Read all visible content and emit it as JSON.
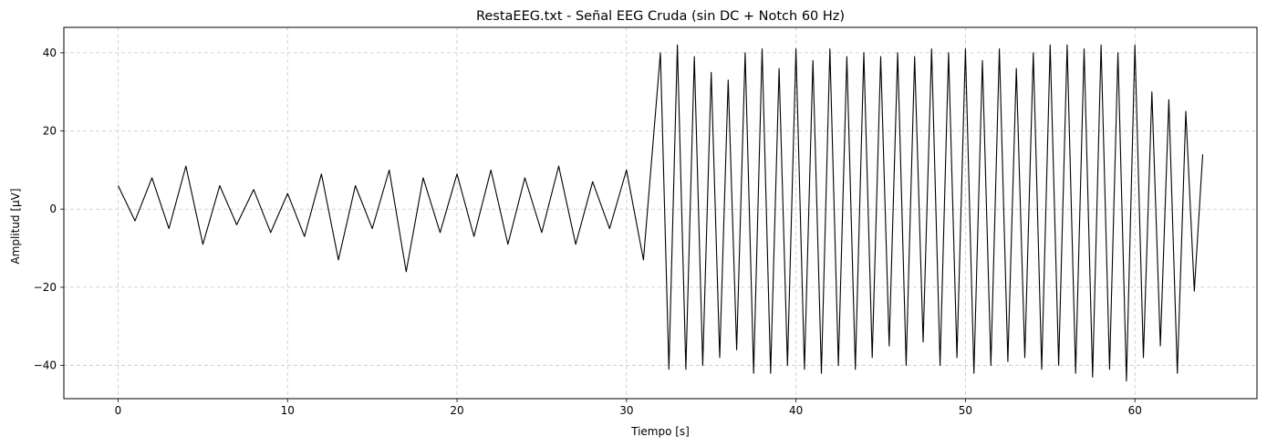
{
  "chart_data": {
    "type": "line",
    "title": "RestaEEG.txt - Señal EEG Cruda (sin DC + Notch 60 Hz)",
    "xlabel": "Tiempo [s]",
    "ylabel": "Amplitud [μV]",
    "xlim": [
      -3.2,
      67.2
    ],
    "ylim": [
      -48.5,
      46.5
    ],
    "xticks": [
      0,
      10,
      20,
      30,
      40,
      50,
      60
    ],
    "yticks": [
      -40,
      -20,
      0,
      20,
      40
    ],
    "ytick_labels": [
      "−40",
      "−20",
      "0",
      "20",
      "40"
    ],
    "grid": true,
    "line_color": "#000000",
    "series": [
      {
        "x": [
          0,
          1,
          2,
          3,
          4,
          5,
          6,
          7,
          8,
          9,
          10,
          11,
          12,
          13,
          14,
          15,
          16,
          17,
          18,
          19,
          20,
          21,
          22,
          23,
          24,
          25,
          26,
          27,
          28,
          29,
          30,
          31,
          32,
          32.5,
          33,
          33.5,
          34,
          34.5,
          35,
          35.5,
          36,
          36.5,
          37,
          37.5,
          38,
          38.5,
          39,
          39.5,
          40,
          40.5,
          41,
          41.5,
          42,
          42.5,
          43,
          43.5,
          44,
          44.5,
          45,
          45.5,
          46,
          46.5,
          47,
          47.5,
          48,
          48.5,
          49,
          49.5,
          50,
          50.5,
          51,
          51.5,
          52,
          52.5,
          53,
          53.5,
          54,
          54.5,
          55,
          55.5,
          56,
          56.5,
          57,
          57.5,
          58,
          58.5,
          59,
          59.5,
          60,
          60.5,
          61,
          61.5,
          62,
          62.5,
          63,
          63.5,
          64
        ],
        "y": [
          6,
          -3,
          8,
          -5,
          11,
          -9,
          6,
          -4,
          5,
          -6,
          4,
          -7,
          9,
          -13,
          6,
          -5,
          10,
          -16,
          8,
          -6,
          9,
          -7,
          10,
          -9,
          8,
          -6,
          11,
          -9,
          7,
          -5,
          10,
          -13,
          40,
          -41,
          42,
          -41,
          39,
          -40,
          35,
          -38,
          33,
          -36,
          40,
          -42,
          41,
          -42,
          36,
          -40,
          41,
          -41,
          38,
          -42,
          41,
          -40,
          39,
          -41,
          40,
          -38,
          39,
          -35,
          40,
          -40,
          39,
          -34,
          41,
          -40,
          40,
          -38,
          41,
          -42,
          38,
          -40,
          41,
          -39,
          36,
          -38,
          40,
          -41,
          42,
          -40,
          42,
          -42,
          41,
          -43,
          42,
          -41,
          40,
          -44,
          42,
          -38,
          30,
          -35,
          28,
          -42,
          25,
          -21,
          14
        ]
      }
    ]
  }
}
